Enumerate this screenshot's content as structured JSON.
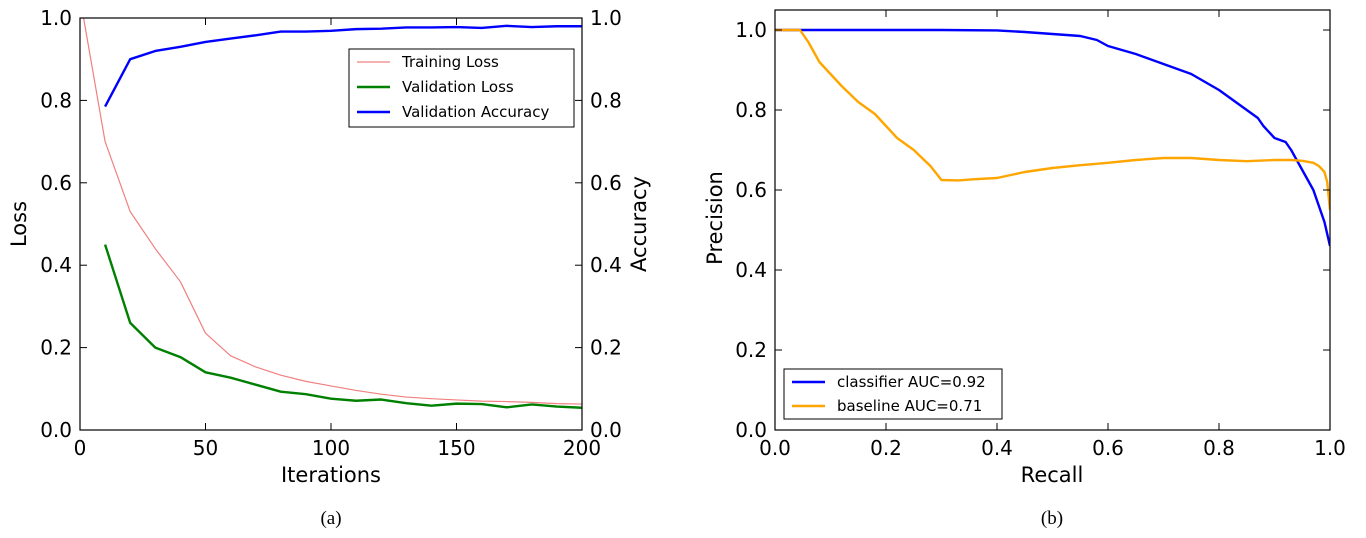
{
  "chart_data": [
    {
      "type": "line",
      "caption": "(a)",
      "xlabel": "Iterations",
      "ylabel": "Loss",
      "y2label": "Accuracy",
      "xlim": [
        0,
        200
      ],
      "ylim": [
        0,
        1.0
      ],
      "y2lim": [
        0,
        1.0
      ],
      "xticks": [
        "0",
        "50",
        "100",
        "150",
        "200"
      ],
      "yticks": [
        "0.0",
        "0.2",
        "0.4",
        "0.6",
        "0.8",
        "1.0"
      ],
      "y2ticks": [
        "0.0",
        "0.2",
        "0.4",
        "0.6",
        "0.8",
        "1.0"
      ],
      "legend_position": "upper-right",
      "series": [
        {
          "name": "Training Loss",
          "axis": "left",
          "color": "#f08080",
          "x": [
            0,
            10,
            20,
            30,
            40,
            50,
            60,
            70,
            80,
            90,
            100,
            110,
            120,
            130,
            140,
            150,
            160,
            170,
            180,
            190,
            200
          ],
          "y": [
            1.05,
            0.7,
            0.53,
            0.44,
            0.36,
            0.235,
            0.18,
            0.153,
            0.133,
            0.118,
            0.107,
            0.096,
            0.087,
            0.08,
            0.076,
            0.073,
            0.07,
            0.069,
            0.067,
            0.064,
            0.063
          ]
        },
        {
          "name": "Validation Loss",
          "axis": "left",
          "color": "#008000",
          "x": [
            10,
            20,
            30,
            40,
            50,
            60,
            70,
            80,
            90,
            100,
            110,
            120,
            130,
            140,
            150,
            160,
            170,
            180,
            190,
            200
          ],
          "y": [
            0.45,
            0.26,
            0.2,
            0.177,
            0.14,
            0.127,
            0.11,
            0.093,
            0.087,
            0.076,
            0.071,
            0.074,
            0.065,
            0.059,
            0.064,
            0.063,
            0.055,
            0.062,
            0.057,
            0.054
          ]
        },
        {
          "name": "Validation Accuracy",
          "axis": "right",
          "color": "#0000ff",
          "x": [
            10,
            20,
            30,
            40,
            50,
            60,
            70,
            80,
            90,
            100,
            110,
            120,
            130,
            140,
            150,
            160,
            170,
            180,
            190,
            200
          ],
          "y": [
            0.785,
            0.9,
            0.92,
            0.93,
            0.942,
            0.95,
            0.958,
            0.967,
            0.967,
            0.969,
            0.973,
            0.974,
            0.977,
            0.977,
            0.978,
            0.976,
            0.981,
            0.978,
            0.98,
            0.98
          ]
        }
      ]
    },
    {
      "type": "line",
      "caption": "(b)",
      "xlabel": "Recall",
      "ylabel": "Precision",
      "xlim": [
        0,
        1.0
      ],
      "ylim": [
        0,
        1.05
      ],
      "xticks": [
        "0.0",
        "0.2",
        "0.4",
        "0.6",
        "0.8",
        "1.0"
      ],
      "yticks": [
        "0.0",
        "0.2",
        "0.4",
        "0.6",
        "0.8",
        "1.0"
      ],
      "legend_position": "lower-left",
      "series": [
        {
          "name": "classifier AUC=0.92",
          "color": "#0000ff",
          "x": [
            0.0,
            0.1,
            0.2,
            0.3,
            0.4,
            0.45,
            0.5,
            0.55,
            0.58,
            0.6,
            0.65,
            0.7,
            0.72,
            0.75,
            0.8,
            0.82,
            0.85,
            0.87,
            0.88,
            0.9,
            0.92,
            0.93,
            0.95,
            0.97,
            0.98,
            0.99,
            1.0
          ],
          "y": [
            1.0,
            1.0,
            1.0,
            1.0,
            0.999,
            0.995,
            0.99,
            0.985,
            0.975,
            0.96,
            0.94,
            0.915,
            0.905,
            0.89,
            0.85,
            0.83,
            0.8,
            0.78,
            0.76,
            0.73,
            0.72,
            0.7,
            0.65,
            0.6,
            0.56,
            0.52,
            0.46
          ]
        },
        {
          "name": "baseline AUC=0.71",
          "color": "#ffa500",
          "x": [
            0.0,
            0.02,
            0.045,
            0.06,
            0.08,
            0.1,
            0.12,
            0.15,
            0.18,
            0.2,
            0.22,
            0.25,
            0.28,
            0.3,
            0.33,
            0.36,
            0.4,
            0.45,
            0.5,
            0.55,
            0.6,
            0.65,
            0.7,
            0.75,
            0.8,
            0.85,
            0.9,
            0.93,
            0.95,
            0.97,
            0.98,
            0.99,
            0.995,
            1.0
          ],
          "y": [
            1.0,
            1.0,
            1.0,
            0.97,
            0.92,
            0.89,
            0.86,
            0.82,
            0.79,
            0.76,
            0.73,
            0.7,
            0.66,
            0.625,
            0.624,
            0.627,
            0.63,
            0.645,
            0.655,
            0.662,
            0.668,
            0.675,
            0.68,
            0.68,
            0.675,
            0.672,
            0.675,
            0.675,
            0.673,
            0.668,
            0.66,
            0.645,
            0.62,
            0.55
          ]
        }
      ]
    }
  ]
}
